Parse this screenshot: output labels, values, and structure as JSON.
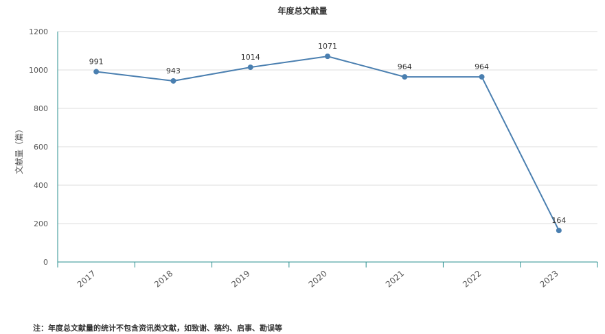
{
  "chart_data": {
    "type": "line",
    "title": "年度总文献量",
    "ylabel": "文献量（篇）",
    "xlabel": "",
    "categories": [
      "2017",
      "2018",
      "2019",
      "2020",
      "2021",
      "2022",
      "2023"
    ],
    "series": [
      {
        "values": [
          991,
          943,
          1014,
          1071,
          964,
          964,
          164
        ]
      }
    ],
    "ylim": [
      0,
      1200
    ],
    "yticks": [
      0,
      200,
      400,
      600,
      800,
      1000,
      1200
    ],
    "grid": true,
    "legend": "none",
    "colors": {
      "line": "#4a7fb0",
      "axis": "#2a8f8f",
      "grid": "#dddddd"
    }
  },
  "footnote": "注：年度总文献量的统计不包含资讯类文献，如致谢、稿约、启事、勘误等"
}
